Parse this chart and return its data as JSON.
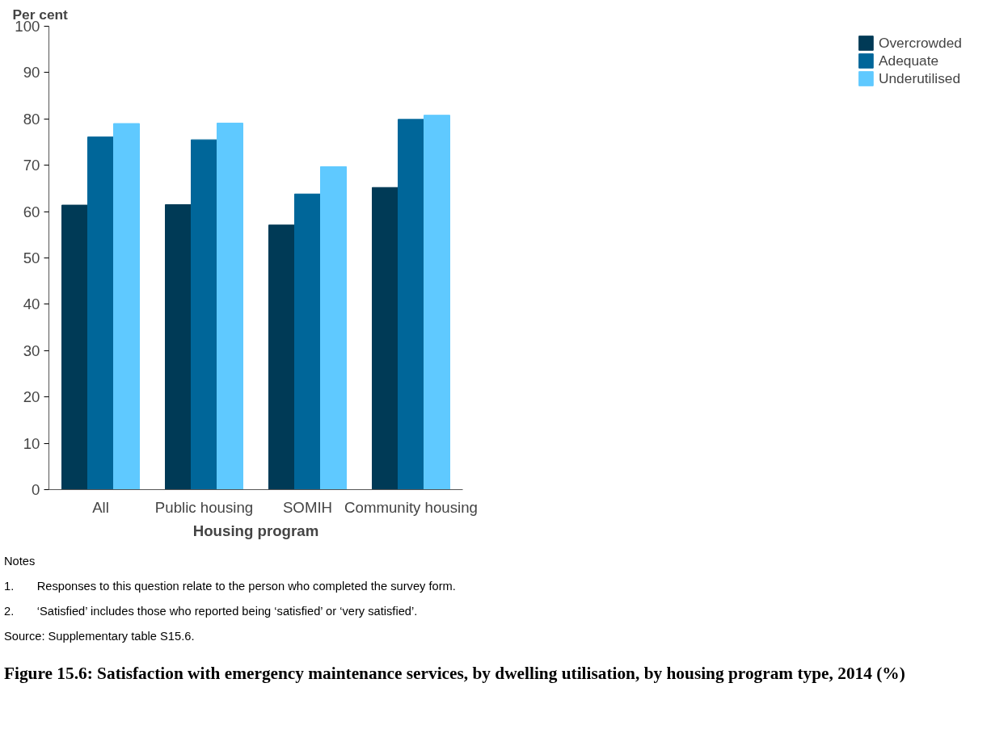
{
  "chart_data": {
    "type": "bar",
    "title": "Figure 15.6: Satisfaction with emergency maintenance services, by dwelling utilisation, by housing program type, 2014 (%)",
    "xlabel": "Housing program",
    "ylabel": "Per cent",
    "categories": [
      "All",
      "Public housing",
      "SOMIH",
      "Community housing"
    ],
    "series": [
      {
        "name": "Overcrowded",
        "color": "#003a56",
        "values": [
          61.4,
          61.5,
          57.1,
          65.2
        ]
      },
      {
        "name": "Adequate",
        "color": "#006699",
        "values": [
          76.1,
          75.5,
          63.8,
          79.9
        ]
      },
      {
        "name": "Underutilised",
        "color": "#5fc9ff",
        "values": [
          79.0,
          79.1,
          69.7,
          80.8
        ]
      }
    ],
    "ylim": [
      0,
      100
    ],
    "yticks": [
      0,
      10,
      20,
      30,
      40,
      50,
      60,
      70,
      80,
      90,
      100
    ],
    "grid": false,
    "legend": "right",
    "annotations": [
      "Notes",
      "1.\tResponses to this question relate to the person who completed the survey form.",
      "2.\t‘Satisfied’ includes those who reported being ‘satisfied’ or ‘very satisfied’.",
      "Source: Supplementary table S15.6."
    ]
  }
}
